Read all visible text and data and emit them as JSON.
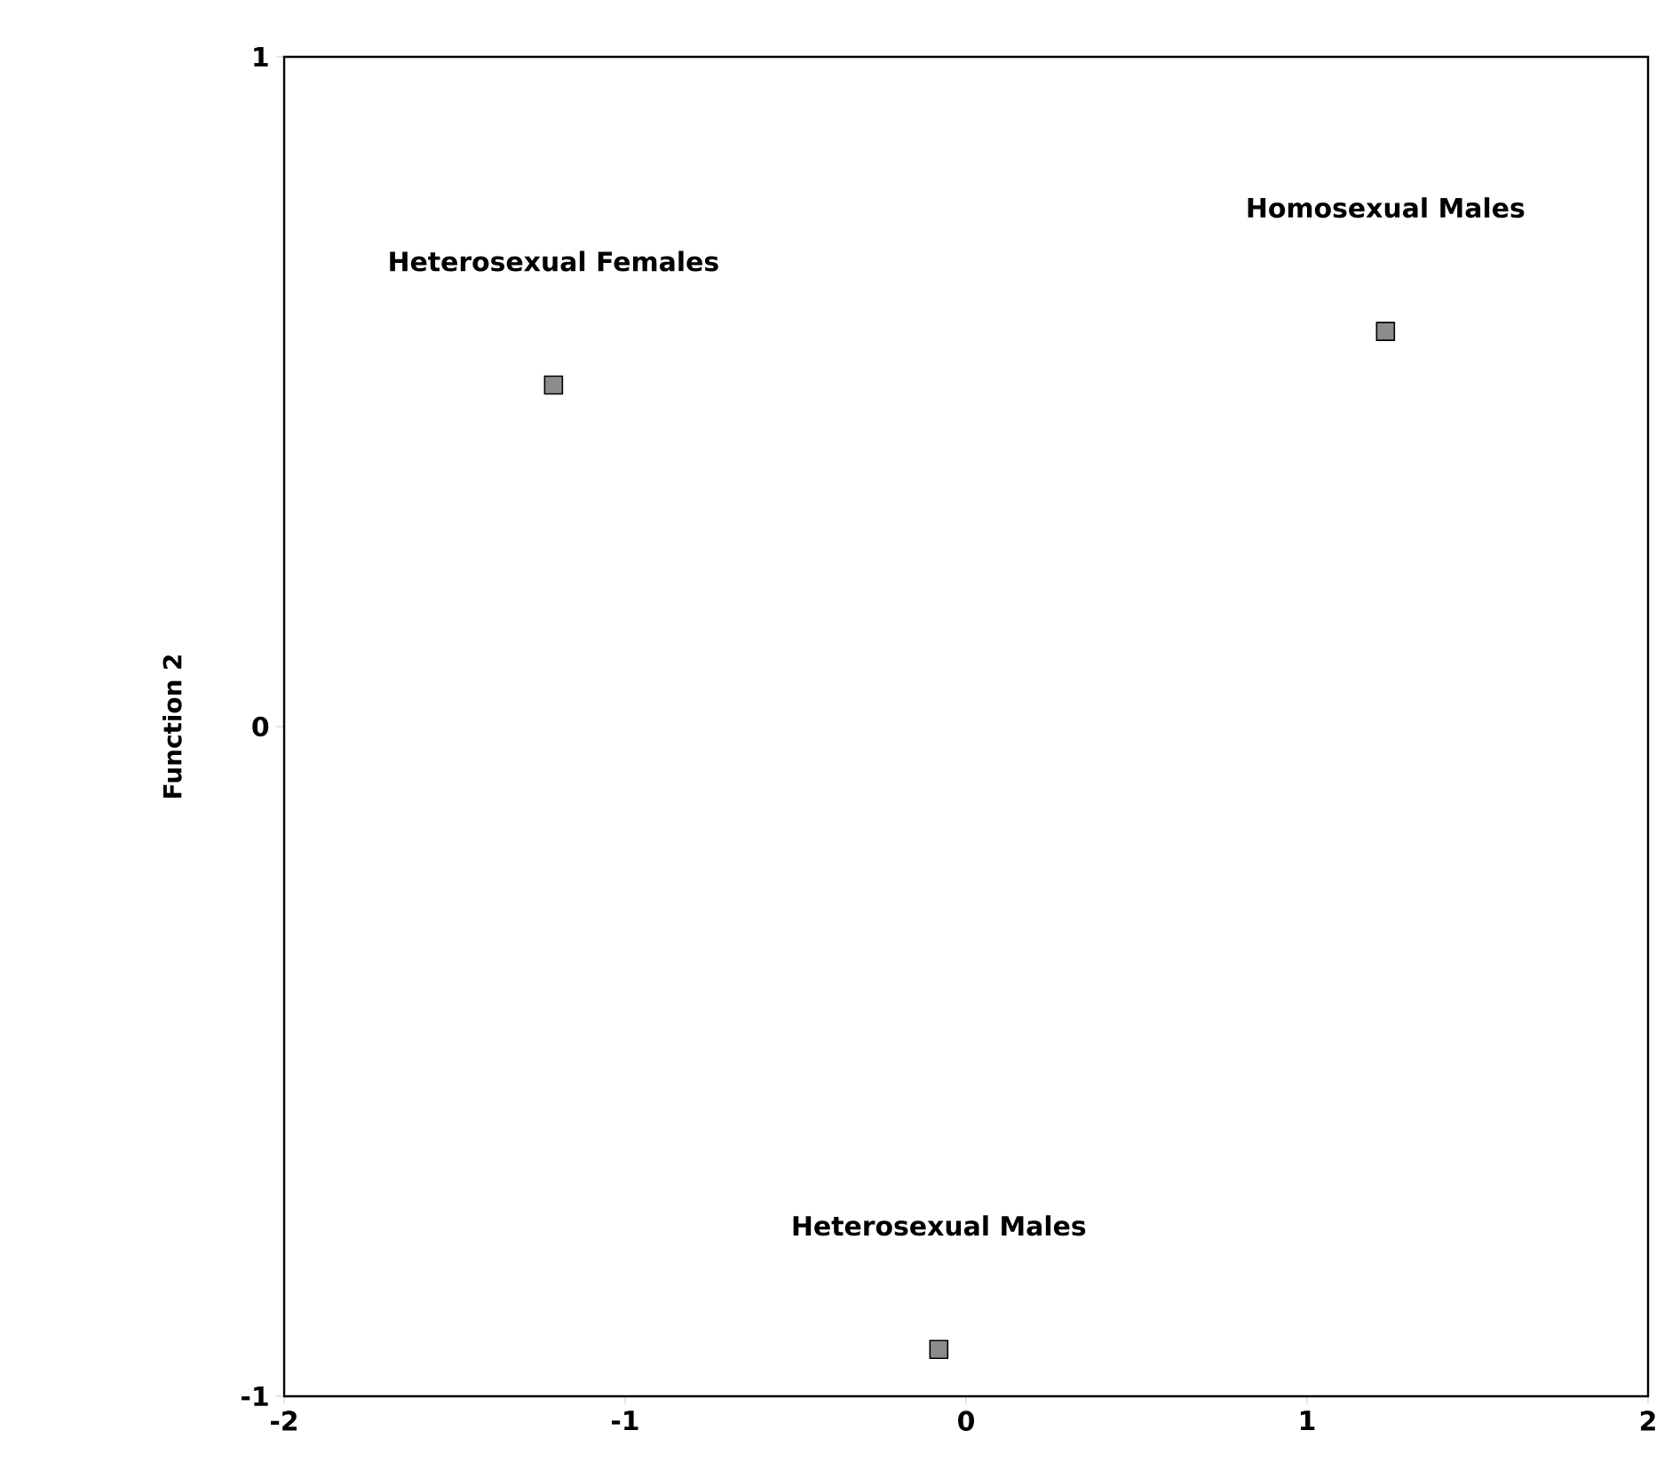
{
  "chart_data": {
    "type": "scatter",
    "ylabel": "Function 2",
    "x": [
      -1.21,
      1.23,
      -0.08
    ],
    "values": [
      0.51,
      0.59,
      -0.93
    ],
    "color": "#000000",
    "marker": "square",
    "xlim": [
      -2,
      2
    ],
    "ylim": [
      -1,
      1
    ],
    "xticks": [
      -2,
      -1,
      0,
      1,
      2
    ],
    "yticks": [
      -1,
      0,
      1
    ],
    "grid": false,
    "annotations": [
      "Heterosexual Females",
      "Homosexual Males",
      "Heterosexual Males"
    ]
  }
}
